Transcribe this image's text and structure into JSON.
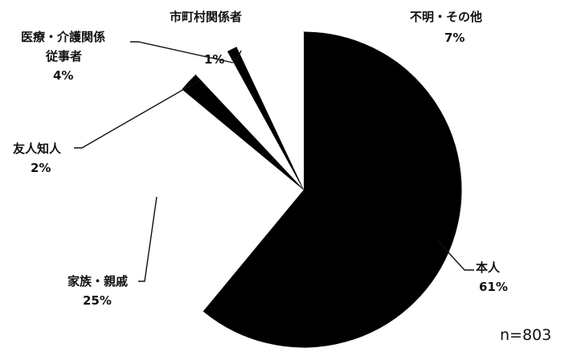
{
  "chart_data": {
    "type": "pie",
    "sample_note": "n=803",
    "slices": [
      {
        "label": "本人",
        "value": 61,
        "display": "61%"
      },
      {
        "label": "家族・親戚",
        "value": 25,
        "display": "25%"
      },
      {
        "label": "友人知人",
        "value": 2,
        "display": "2%"
      },
      {
        "label": "医療・介護関係従事者",
        "label_lines": [
          "医療・介護関係",
          "従事者"
        ],
        "value": 4,
        "display": "4%"
      },
      {
        "label": "市町村関係者",
        "value": 1,
        "display": "1%"
      },
      {
        "label": "不明・その他",
        "value": 7,
        "display": "7%"
      }
    ],
    "colors": {
      "本人": "#000000",
      "家族・親戚": "#ffffff",
      "友人知人": "#000000",
      "医療・介護関係従事者": "#ffffff",
      "市町村関係者": "#000000",
      "不明・その他": "#ffffff"
    }
  }
}
